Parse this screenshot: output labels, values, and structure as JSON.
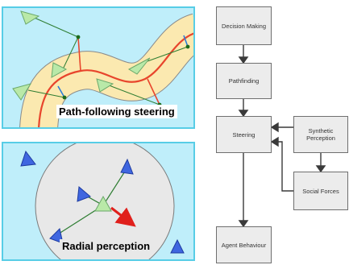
{
  "captions": {
    "path_following": "Path-following steering",
    "radial": "Radial perception"
  },
  "flow": {
    "decision_making": "Decision Making",
    "pathfinding": "Pathfinding",
    "steering": "Steering",
    "synthetic_perception": "Synthetic Perception",
    "social_forces": "Social Forces",
    "agent_behaviour": "Agent Behaviour"
  },
  "colors": {
    "panel_bg": "#bfeefa",
    "panel_border": "#57cde6",
    "road": "#fbe9b0",
    "path_line": "#e8452c",
    "agent_green": "#b9e9a8",
    "agent_blue": "#3f66e0",
    "arrow_red": "#e0201c"
  }
}
